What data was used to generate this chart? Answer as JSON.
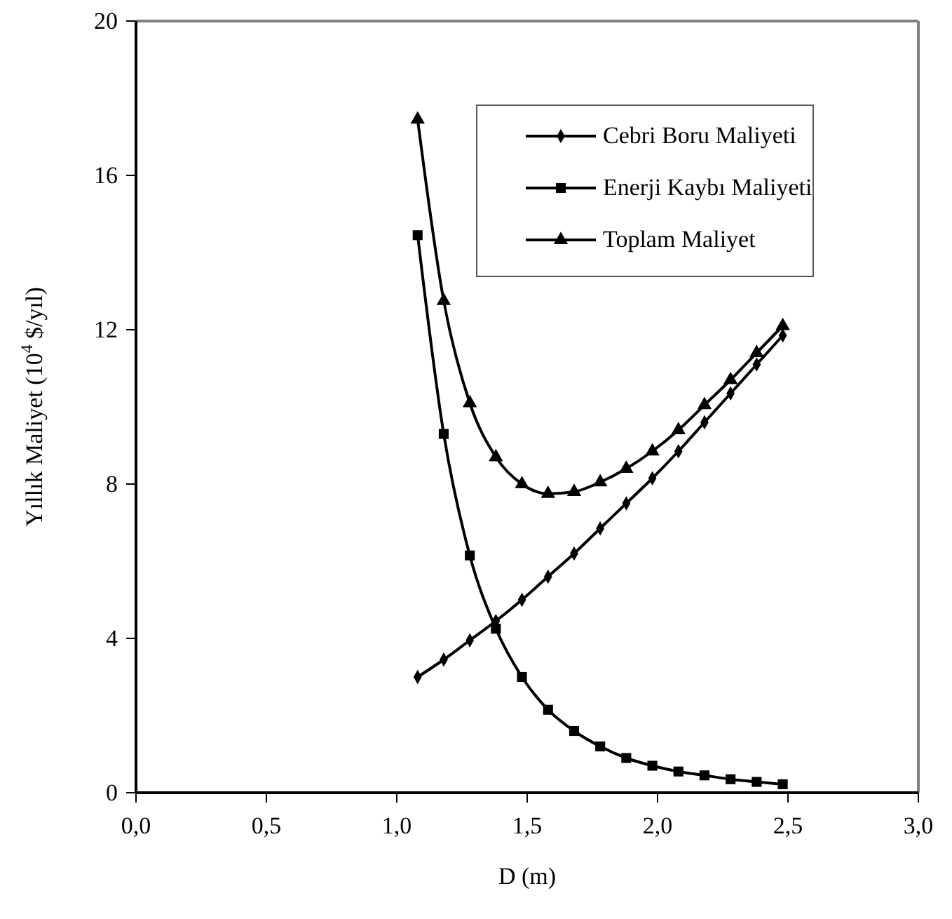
{
  "chart_data": {
    "type": "line",
    "xlabel": "D (m)",
    "ylabel": "Yıllık Maliyet (10$^{4}$ $/yıl)",
    "x": [
      1.08,
      1.18,
      1.28,
      1.38,
      1.48,
      1.58,
      1.68,
      1.78,
      1.88,
      1.98,
      2.08,
      2.18,
      2.28,
      2.38,
      2.48
    ],
    "series": [
      {
        "name": "Cebri Boru Maliyeti",
        "color": "#000000",
        "marker": "diamond",
        "values": [
          3.0,
          3.45,
          3.95,
          4.45,
          5.0,
          5.6,
          6.2,
          6.85,
          7.5,
          8.15,
          8.85,
          9.6,
          10.35,
          11.1,
          11.85
        ]
      },
      {
        "name": "Enerji Kaybı Maliyeti",
        "color": "#000000",
        "marker": "square",
        "values": [
          14.45,
          9.3,
          6.15,
          4.25,
          3.0,
          2.15,
          1.6,
          1.2,
          0.9,
          0.7,
          0.55,
          0.45,
          0.35,
          0.28,
          0.22
        ]
      },
      {
        "name": "Toplam Maliyet",
        "color": "#000000",
        "marker": "triangle",
        "values": [
          17.45,
          12.75,
          10.1,
          8.7,
          8.0,
          7.75,
          7.8,
          8.05,
          8.4,
          8.85,
          9.4,
          10.05,
          10.7,
          11.4,
          12.1
        ]
      }
    ],
    "xlim": [
      0,
      3
    ],
    "xticks": [
      {
        "value": 0,
        "label": "0,0"
      },
      {
        "value": 0.5,
        "label": "0,5"
      },
      {
        "value": 1,
        "label": "1,0"
      },
      {
        "value": 1.5,
        "label": "1,5"
      },
      {
        "value": 2,
        "label": "2,0"
      },
      {
        "value": 2.5,
        "label": "2,5"
      },
      {
        "value": 3,
        "label": "3,0"
      }
    ],
    "ylim": [
      0,
      20
    ],
    "yticks": [
      0,
      4,
      8,
      12,
      16,
      20
    ],
    "legend": "top right",
    "grid": false,
    "line_style": "solid"
  }
}
